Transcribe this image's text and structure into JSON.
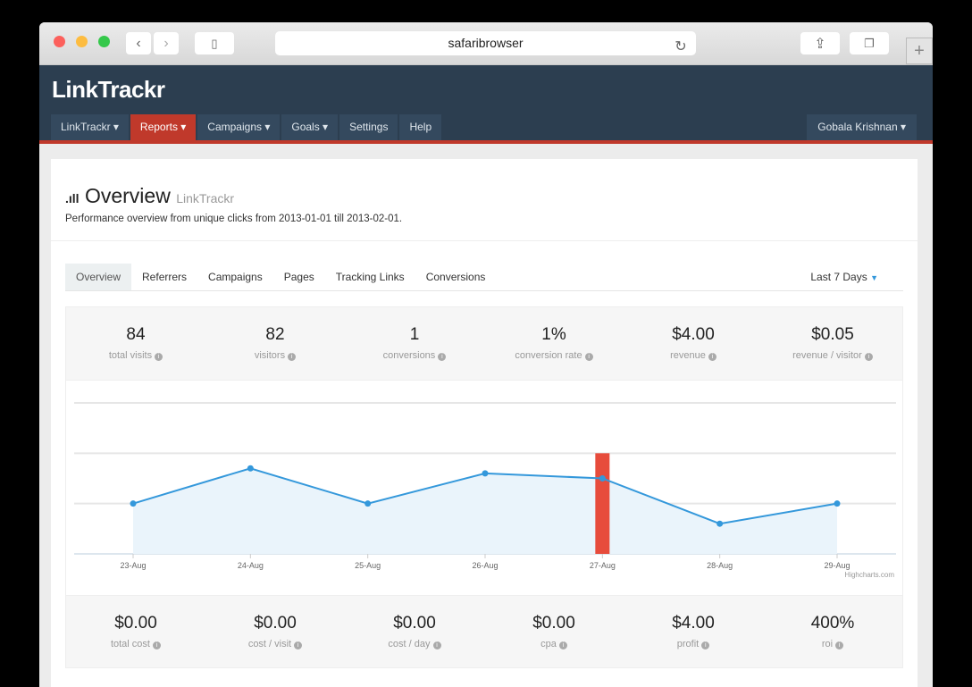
{
  "browser": {
    "url": "safaribrowser"
  },
  "app": {
    "logo": "LinkTrackr",
    "nav": [
      "LinkTrackr ▾",
      "Reports ▾",
      "Campaigns ▾",
      "Goals ▾",
      "Settings",
      "Help"
    ],
    "nav_icons": [
      "cube-icon",
      "signal-icon",
      "shuffle-icon",
      "crosshair-icon",
      "wrench-icon",
      "medkit-icon"
    ],
    "user": "Gobala Krishnan ▾",
    "accent": "#c0392b",
    "navbar_bg": "#2c3e50"
  },
  "page": {
    "title": "Overview",
    "title_sub": "LinkTrackr",
    "subtitle": "Performance overview from unique clicks from 2013-01-01 till 2013-02-01."
  },
  "tabs": [
    "Overview",
    "Referrers",
    "Campaigns",
    "Pages",
    "Tracking Links",
    "Conversions"
  ],
  "range": "Last 7 Days",
  "stats_top": [
    {
      "value": "84",
      "label": "total visits"
    },
    {
      "value": "82",
      "label": "visitors"
    },
    {
      "value": "1",
      "label": "conversions"
    },
    {
      "value": "1%",
      "label": "conversion rate"
    },
    {
      "value": "$4.00",
      "label": "revenue"
    },
    {
      "value": "$0.05",
      "label": "revenue / visitor"
    }
  ],
  "stats_bottom": [
    {
      "value": "$0.00",
      "label": "total cost"
    },
    {
      "value": "$0.00",
      "label": "cost / visit"
    },
    {
      "value": "$0.00",
      "label": "cost / day"
    },
    {
      "value": "$0.00",
      "label": "cpa"
    },
    {
      "value": "$4.00",
      "label": "profit"
    },
    {
      "value": "400%",
      "label": "roi"
    }
  ],
  "chart_data": {
    "type": "area",
    "categories": [
      "23-Aug",
      "24-Aug",
      "25-Aug",
      "26-Aug",
      "27-Aug",
      "28-Aug",
      "29-Aug"
    ],
    "values": [
      1,
      1.7,
      1,
      1.6,
      1.5,
      0.6,
      1
    ],
    "bar": {
      "category": "27-Aug",
      "value": 2,
      "color": "#e74c3c"
    },
    "ylim": [
      0,
      3
    ],
    "grid": true,
    "line_color": "#3498db",
    "credit": "Highcharts.com"
  }
}
